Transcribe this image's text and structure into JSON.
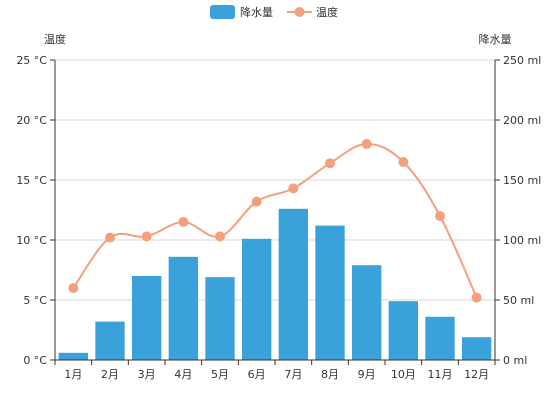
{
  "chart_data": {
    "type": "bar",
    "categories": [
      "1月",
      "2月",
      "3月",
      "4月",
      "5月",
      "6月",
      "7月",
      "8月",
      "9月",
      "10月",
      "11月",
      "12月"
    ],
    "series": [
      {
        "name": "降水量",
        "type": "bar",
        "axis": "right",
        "color": "#3aa1da",
        "values": [
          6,
          32,
          70,
          86,
          69,
          101,
          126,
          112,
          79,
          49,
          36,
          19
        ]
      },
      {
        "name": "温度",
        "type": "line",
        "axis": "left",
        "color": "#f4a07f",
        "smooth": true,
        "values": [
          6.0,
          10.2,
          10.3,
          11.5,
          10.3,
          13.2,
          14.3,
          16.4,
          18.0,
          16.5,
          12.0,
          5.2
        ]
      }
    ],
    "left_axis": {
      "name": "温度",
      "unit": " °C",
      "ylim": [
        0,
        25
      ],
      "ticks": [
        0,
        5,
        10,
        15,
        20,
        25
      ]
    },
    "right_axis": {
      "name": "降水量",
      "unit": " ml",
      "ylim": [
        0,
        250
      ],
      "ticks": [
        0,
        50,
        100,
        150,
        200,
        250
      ]
    },
    "grid": true,
    "legend_position": "top-center"
  }
}
